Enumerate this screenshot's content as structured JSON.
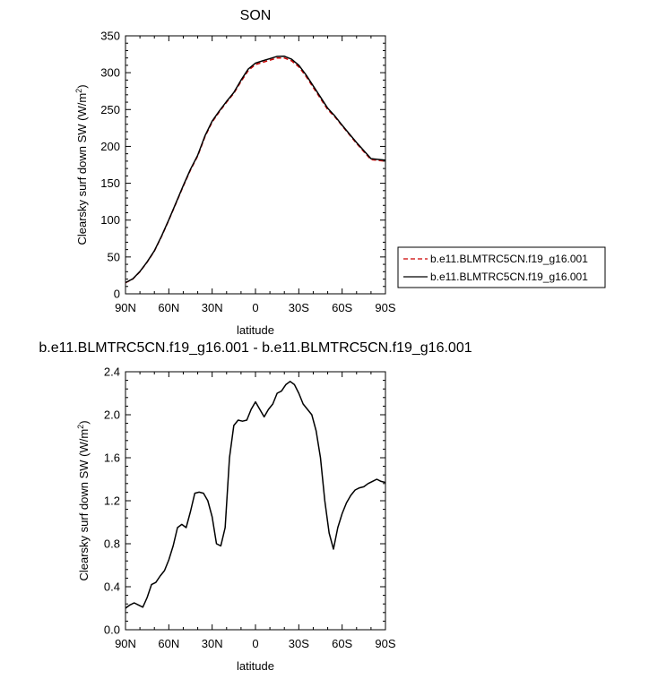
{
  "chart_data": [
    {
      "type": "line",
      "title": "SON",
      "xlabel": "latitude",
      "ylabel": "Clearsky surf down SW (W/m",
      "ylabel_sup": "2",
      "ylabel_end": ")",
      "xlim": [
        90,
        -90
      ],
      "ylim": [
        0,
        350
      ],
      "xticks": [
        90,
        60,
        30,
        0,
        -30,
        -60,
        -90
      ],
      "xtick_labels": [
        "90N",
        "60N",
        "30N",
        "0",
        "30S",
        "60S",
        "90S"
      ],
      "yticks": [
        0,
        50,
        100,
        150,
        200,
        250,
        300,
        350
      ],
      "ytick_labels": [
        "0",
        "50",
        "100",
        "150",
        "200",
        "250",
        "300",
        "350"
      ],
      "x": [
        90,
        85,
        80,
        75,
        70,
        65,
        60,
        55,
        50,
        45,
        40,
        35,
        30,
        25,
        20,
        15,
        10,
        5,
        0,
        -5,
        -10,
        -15,
        -20,
        -25,
        -30,
        -35,
        -40,
        -45,
        -50,
        -55,
        -60,
        -65,
        -70,
        -75,
        -80,
        -85,
        -90
      ],
      "series": [
        {
          "name": "b.e11.BLMTRC5CN.f19_g16.001",
          "color": "#cc0000",
          "dash": "dashed",
          "values": [
            15,
            20,
            30,
            43,
            58,
            78,
            100,
            123,
            146,
            168,
            187,
            213,
            233,
            247,
            260,
            272,
            288,
            303,
            311,
            314,
            317,
            320,
            320,
            316,
            308,
            295,
            280,
            265,
            250,
            240,
            228,
            216,
            204,
            193,
            182,
            181,
            180
          ]
        },
        {
          "name": "b.e11.BLMTRC5CN.f19_g16.001",
          "color": "#000000",
          "dash": "solid",
          "values": [
            15.2,
            20.25,
            30.3,
            43.35,
            58.4,
            78.5,
            100.5,
            123.6,
            146.8,
            169,
            188,
            214.2,
            234.3,
            248.2,
            261.1,
            273.1,
            289.9,
            305,
            313,
            316.1,
            319.1,
            322.1,
            322.3,
            318.3,
            310.1,
            297.1,
            282,
            267,
            251.8,
            241.2,
            228.8,
            216.9,
            205.2,
            194.3,
            183.3,
            182.3,
            181.4
          ]
        }
      ],
      "legend": {
        "position": "right",
        "entries": [
          {
            "label": "b.e11.BLMTRC5CN.f19_g16.001",
            "color": "#cc0000",
            "dash": "dashed"
          },
          {
            "label": "b.e11.BLMTRC5CN.f19_g16.001",
            "color": "#000000",
            "dash": "solid"
          }
        ]
      },
      "grid": false
    },
    {
      "type": "line",
      "title": "b.e11.BLMTRC5CN.f19_g16.001 - b.e11.BLMTRC5CN.f19_g16.001",
      "xlabel": "latitude",
      "ylabel": "Clearsky surf down SW (W/m",
      "ylabel_sup": "2",
      "ylabel_end": ")",
      "xlim": [
        90,
        -90
      ],
      "ylim": [
        0,
        2.4
      ],
      "xticks": [
        90,
        60,
        30,
        0,
        -30,
        -60,
        -90
      ],
      "xtick_labels": [
        "90N",
        "60N",
        "30N",
        "0",
        "30S",
        "60S",
        "90S"
      ],
      "yticks": [
        0,
        0.4,
        0.8,
        1.2,
        1.6,
        2.0,
        2.4
      ],
      "ytick_labels": [
        "0.0",
        "0.4",
        "0.8",
        "1.2",
        "1.6",
        "2.0",
        "2.4"
      ],
      "x": [
        90,
        87,
        84,
        81,
        78,
        75,
        72,
        69,
        66,
        63,
        60,
        57,
        54,
        51,
        48,
        45,
        42,
        39,
        36,
        33,
        30,
        27,
        24,
        21,
        18,
        15,
        12,
        9,
        6,
        3,
        0,
        -3,
        -6,
        -9,
        -12,
        -15,
        -18,
        -21,
        -24,
        -27,
        -30,
        -33,
        -36,
        -39,
        -42,
        -45,
        -48,
        -51,
        -54,
        -57,
        -60,
        -63,
        -66,
        -69,
        -72,
        -75,
        -78,
        -81,
        -84,
        -87,
        -90
      ],
      "series": [
        {
          "name": "",
          "color": "#000000",
          "dash": "solid",
          "values": [
            0.2,
            0.23,
            0.25,
            0.23,
            0.21,
            0.3,
            0.42,
            0.44,
            0.5,
            0.55,
            0.65,
            0.78,
            0.95,
            0.98,
            0.95,
            1.1,
            1.27,
            1.28,
            1.27,
            1.2,
            1.05,
            0.8,
            0.78,
            0.95,
            1.6,
            1.9,
            1.95,
            1.94,
            1.95,
            2.05,
            2.12,
            2.05,
            1.98,
            2.05,
            2.1,
            2.2,
            2.22,
            2.28,
            2.31,
            2.28,
            2.2,
            2.1,
            2.05,
            2.0,
            1.85,
            1.6,
            1.2,
            0.9,
            0.75,
            0.95,
            1.08,
            1.18,
            1.25,
            1.3,
            1.32,
            1.33,
            1.36,
            1.38,
            1.4,
            1.38,
            1.37
          ]
        }
      ],
      "grid": false
    }
  ]
}
